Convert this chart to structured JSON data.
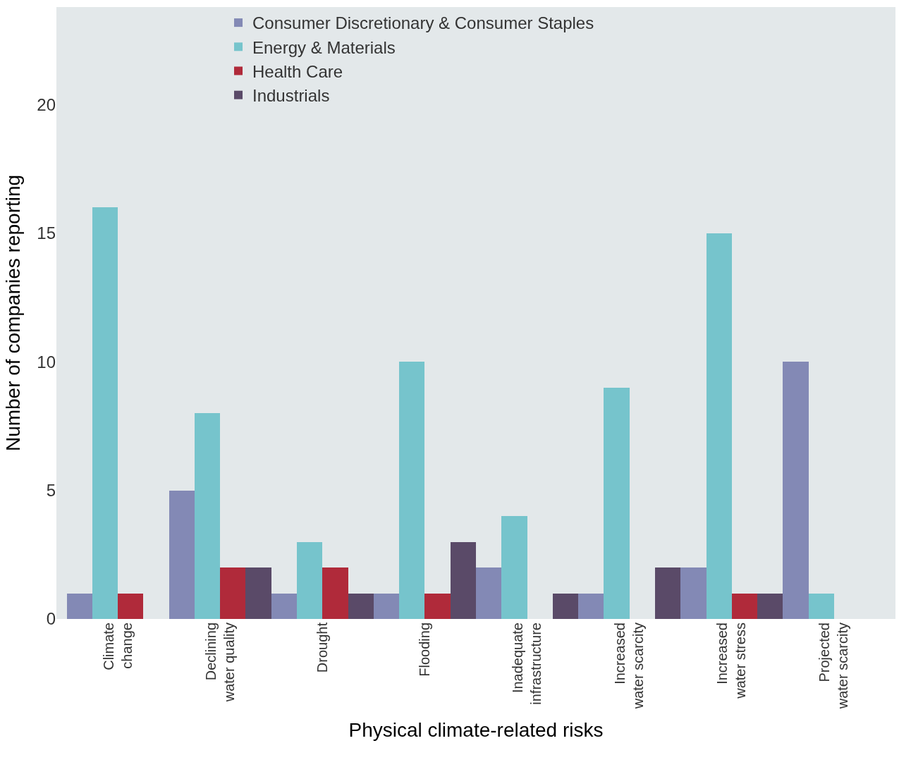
{
  "chart_data": {
    "type": "bar",
    "xlabel": "Physical climate-related risks",
    "ylabel": "Number of companies reporting",
    "categories": [
      "Climate\nchange",
      "Declining\nwater quality",
      "Drought",
      "Flooding",
      "Inadequate\ninfrastructure",
      "Increased\nwater scarcity",
      "Increased\nwater stress",
      "Projected\nwater scarcity"
    ],
    "series": [
      {
        "name": "Consumer Discretionary & Consumer Staples",
        "color": "#8389b5",
        "values": [
          1,
          5,
          1,
          1,
          2,
          1,
          2,
          10
        ]
      },
      {
        "name": "Energy & Materials",
        "color": "#76c4cc",
        "values": [
          16,
          8,
          3,
          10,
          4,
          9,
          15,
          1
        ]
      },
      {
        "name": "Health Care",
        "color": "#b02a3a",
        "values": [
          1,
          2,
          2,
          1,
          0,
          0,
          1,
          0
        ]
      },
      {
        "name": "Industrials",
        "color": "#5a4a68",
        "values": [
          0,
          2,
          1,
          3,
          1,
          2,
          1,
          0
        ]
      }
    ],
    "ylim": [
      0,
      23.8
    ],
    "yticks": [
      0,
      5,
      10,
      15,
      20
    ],
    "grid": false,
    "legend": "top left"
  }
}
